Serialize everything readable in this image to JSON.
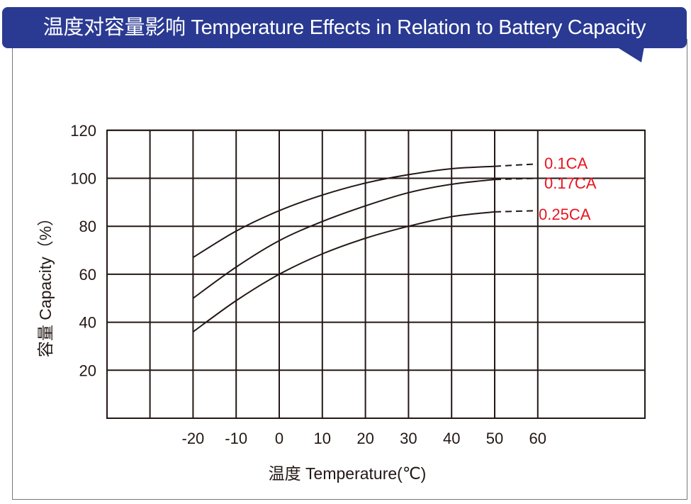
{
  "title": "温度对容量影响  Temperature Effects in Relation to Battery Capacity",
  "colors": {
    "banner": "#2a3a92",
    "series_label": "#e8141e",
    "line": "#231815"
  },
  "chart_data": {
    "type": "line",
    "title": "温度对容量影响  Temperature Effects in Relation to Battery Capacity",
    "xlabel": "温度  Temperature(℃)",
    "ylabel": "容量  Capacity（%）",
    "xlim": [
      -40,
      85
    ],
    "ylim": [
      0,
      120
    ],
    "xticks": [
      -20,
      -10,
      0,
      10,
      20,
      30,
      40,
      50,
      60
    ],
    "xtick_labels": [
      "-20",
      "-10",
      "0",
      "10",
      "20",
      "30",
      "40",
      "50",
      "60"
    ],
    "yticks": [
      20,
      40,
      60,
      80,
      100,
      120
    ],
    "ytick_labels": [
      "20",
      "40",
      "60",
      "80",
      "100",
      "120"
    ],
    "grid": true,
    "series": [
      {
        "name": "0.1CA",
        "x": [
          -20,
          -10,
          0,
          10,
          20,
          30,
          40,
          50
        ],
        "values": [
          67,
          78,
          86.5,
          93,
          98,
          101.5,
          104,
          105
        ],
        "extrapolated": {
          "x": [
            50,
            60
          ],
          "values": [
            105,
            106
          ]
        }
      },
      {
        "name": "0.17CA",
        "x": [
          -20,
          -10,
          0,
          10,
          20,
          30,
          40,
          50
        ],
        "values": [
          50,
          63,
          74,
          82,
          88.5,
          94,
          97.5,
          99.5
        ],
        "extrapolated": {
          "x": [
            50,
            60
          ],
          "values": [
            99.5,
            100
          ]
        }
      },
      {
        "name": "0.25CA",
        "x": [
          -20,
          -10,
          0,
          10,
          20,
          30,
          40,
          50
        ],
        "values": [
          36,
          49,
          60,
          68.5,
          75,
          80,
          84,
          86
        ],
        "extrapolated": {
          "x": [
            50,
            60
          ],
          "values": [
            86,
            86.5
          ]
        }
      }
    ]
  }
}
